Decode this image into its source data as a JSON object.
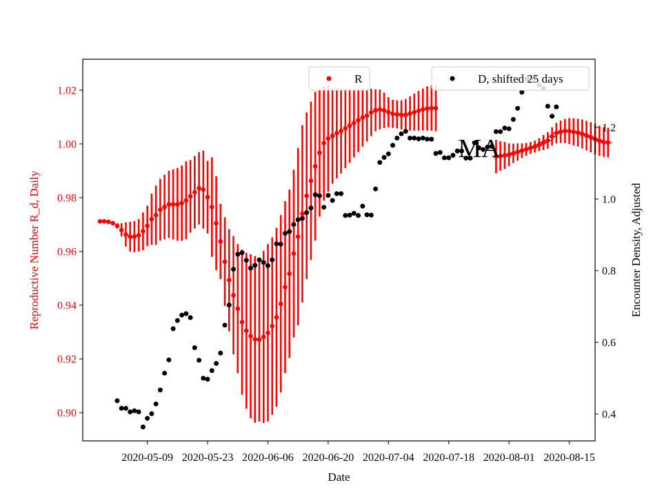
{
  "chart_data": {
    "type": "scatter",
    "annotation": "MA",
    "xlabel": "Date",
    "x_ticks": [
      "2020-05-09",
      "2020-05-23",
      "2020-06-06",
      "2020-06-20",
      "2020-07-04",
      "2020-07-18",
      "2020-08-01",
      "2020-08-15"
    ],
    "y_left": {
      "label": "Reproductive Number R_d, Daily",
      "color": "#ff0000",
      "ticks": [
        "0.90",
        "0.92",
        "0.94",
        "0.96",
        "0.98",
        "1.00",
        "1.02"
      ],
      "lim": [
        0.8895,
        1.0315
      ]
    },
    "y_right": {
      "label": "Encounter Density, Adjusted",
      "color": "#000000",
      "ticks": [
        "0.4",
        "0.6",
        "0.8",
        "1.0",
        "1.2"
      ],
      "lim": [
        0.325,
        1.39
      ]
    },
    "legend": {
      "left_label": "R",
      "right_label": "D, shifted 25 days"
    },
    "series": [
      {
        "name": "R",
        "axis": "left",
        "color": "#ff0000",
        "start_date": "2020-04-28",
        "values": [
          0.9712,
          0.9712,
          0.971,
          0.9705,
          0.9695,
          0.968,
          0.9663,
          0.9655,
          0.9655,
          0.966,
          0.9675,
          0.9695,
          0.972,
          0.9735,
          0.9755,
          0.9765,
          0.9775,
          0.9775,
          0.9775,
          0.978,
          0.979,
          0.9805,
          0.982,
          0.9835,
          0.983,
          0.9802,
          0.9765,
          0.9705,
          0.9637,
          0.9562,
          0.9493,
          0.9437,
          0.9387,
          0.9337,
          0.9305,
          0.9285,
          0.9273,
          0.9272,
          0.9282,
          0.9297,
          0.9322,
          0.9355,
          0.9405,
          0.9467,
          0.9517,
          0.9592,
          0.9655,
          0.974,
          0.9807,
          0.9863,
          0.9917,
          0.9967,
          1.0003,
          1.002,
          1.003,
          1.004,
          1.0048,
          1.0058,
          1.0068,
          1.0078,
          1.0088,
          1.0098,
          1.0105,
          1.0117,
          1.0125,
          1.0128,
          1.0125,
          1.0118,
          1.0112,
          1.011,
          1.0108,
          1.0108,
          1.0113,
          1.0118,
          1.0123,
          1.0128,
          1.0132,
          1.0133,
          1.0133
        ],
        "errors": [
          0,
          0,
          0,
          0,
          0.001,
          0.0025,
          0.0045,
          0.0055,
          0.0058,
          0.006,
          0.007,
          0.0075,
          0.0095,
          0.011,
          0.0115,
          0.012,
          0.0125,
          0.013,
          0.0135,
          0.014,
          0.0145,
          0.0135,
          0.0135,
          0.0135,
          0.0145,
          0.0135,
          0.0185,
          0.0175,
          0.014,
          0.0165,
          0.019,
          0.022,
          0.024,
          0.027,
          0.029,
          0.0305,
          0.031,
          0.0305,
          0.032,
          0.033,
          0.033,
          0.0333,
          0.033,
          0.032,
          0.0313,
          0.0312,
          0.033,
          0.033,
          0.031,
          0.0294,
          0.0277,
          0.0238,
          0.0213,
          0.0198,
          0.0178,
          0.0168,
          0.0158,
          0.0148,
          0.0138,
          0.0128,
          0.0118,
          0.0108,
          0.0096,
          0.0088,
          0.0078,
          0.0074,
          0.0066,
          0.0056,
          0.0052,
          0.0052,
          0.0054,
          0.0059,
          0.0064,
          0.0069,
          0.0074,
          0.0078,
          0.0082,
          0.0084,
          0.0086
        ]
      },
      {
        "name": "R (tail)",
        "axis": "left",
        "color": "#ff0000",
        "start_date": "2020-07-29",
        "values": [
          0.9953,
          0.9955,
          0.9957,
          0.996,
          0.9965,
          0.997,
          0.9975,
          0.998,
          0.9985,
          0.999,
          0.9997,
          1.0005,
          1.0013,
          1.0028,
          1.004,
          1.0045,
          1.0048,
          1.0048,
          1.0045,
          1.0042,
          1.0037,
          1.0031,
          1.0025,
          1.0018,
          1.0012,
          1.0007,
          1.0005
        ],
        "errors": [
          0.0062,
          0.0055,
          0.005,
          0.0042,
          0.0036,
          0.0032,
          0.0027,
          0.0024,
          0.0022,
          0.0022,
          0.0024,
          0.0028,
          0.0031,
          0.0034,
          0.0038,
          0.0042,
          0.0045,
          0.0048,
          0.005,
          0.0052,
          0.0054,
          0.0055,
          0.0056,
          0.0057,
          0.0056,
          0.0055,
          0.0055
        ]
      },
      {
        "name": "D, shifted 25 days",
        "axis": "right",
        "color": "#000000",
        "start_date": "2020-05-02",
        "points": [
          [
            "2020-05-02",
            0.437
          ],
          [
            "2020-05-03",
            0.416
          ],
          [
            "2020-05-04",
            0.416
          ],
          [
            "2020-05-05",
            0.406
          ],
          [
            "2020-05-06",
            0.409
          ],
          [
            "2020-05-07",
            0.406
          ],
          [
            "2020-05-08",
            0.364
          ],
          [
            "2020-05-09",
            0.388
          ],
          [
            "2020-05-10",
            0.401
          ],
          [
            "2020-05-11",
            0.428
          ],
          [
            "2020-05-12",
            0.467
          ],
          [
            "2020-05-13",
            0.514
          ],
          [
            "2020-05-14",
            0.551
          ],
          [
            "2020-05-15",
            0.638
          ],
          [
            "2020-05-16",
            0.661
          ],
          [
            "2020-05-17",
            0.676
          ],
          [
            "2020-05-18",
            0.68
          ],
          [
            "2020-05-19",
            0.669
          ],
          [
            "2020-05-20",
            0.585
          ],
          [
            "2020-05-21",
            0.55
          ],
          [
            "2020-05-22",
            0.5
          ],
          [
            "2020-05-23",
            0.497
          ],
          [
            "2020-05-24",
            0.521
          ],
          [
            "2020-05-25",
            0.541
          ],
          [
            "2020-05-26",
            0.57
          ],
          [
            "2020-05-27",
            0.648
          ],
          [
            "2020-05-28",
            0.704
          ],
          [
            "2020-05-29",
            0.804
          ],
          [
            "2020-05-30",
            0.846
          ],
          [
            "2020-05-31",
            0.85
          ],
          [
            "2020-06-01",
            0.829
          ],
          [
            "2020-06-02",
            0.807
          ],
          [
            "2020-06-03",
            0.815
          ],
          [
            "2020-06-04",
            0.83
          ],
          [
            "2020-06-05",
            0.823
          ],
          [
            "2020-06-06",
            0.814
          ],
          [
            "2020-06-07",
            0.83
          ],
          [
            "2020-06-08",
            0.875
          ],
          [
            "2020-06-09",
            0.874
          ],
          [
            "2020-06-10",
            0.904
          ],
          [
            "2020-06-11",
            0.909
          ],
          [
            "2020-06-12",
            0.929
          ],
          [
            "2020-06-13",
            0.942
          ],
          [
            "2020-06-14",
            0.946
          ],
          [
            "2020-06-15",
            0.962
          ],
          [
            "2020-06-16",
            0.975
          ],
          [
            "2020-06-17",
            1.012
          ],
          [
            "2020-06-18",
            1.009
          ],
          [
            "2020-06-19",
            0.977
          ],
          [
            "2020-06-20",
            1.01
          ],
          [
            "2020-06-21",
            0.996
          ],
          [
            "2020-06-22",
            1.015
          ],
          [
            "2020-06-23",
            1.015
          ],
          [
            "2020-06-24",
            0.954
          ],
          [
            "2020-06-25",
            0.955
          ],
          [
            "2020-06-26",
            0.96
          ],
          [
            "2020-06-27",
            0.954
          ],
          [
            "2020-06-28",
            0.98
          ],
          [
            "2020-06-29",
            0.956
          ],
          [
            "2020-06-30",
            0.955
          ],
          [
            "2020-07-01",
            1.028
          ],
          [
            "2020-07-02",
            1.102
          ],
          [
            "2020-07-03",
            1.116
          ],
          [
            "2020-07-04",
            1.126
          ],
          [
            "2020-07-05",
            1.15
          ],
          [
            "2020-07-06",
            1.17
          ],
          [
            "2020-07-07",
            1.182
          ],
          [
            "2020-07-08",
            1.189
          ],
          [
            "2020-07-09",
            1.17
          ],
          [
            "2020-07-10",
            1.17
          ],
          [
            "2020-07-11",
            1.168
          ],
          [
            "2020-07-12",
            1.17
          ],
          [
            "2020-07-13",
            1.167
          ],
          [
            "2020-07-14",
            1.167
          ],
          [
            "2020-07-15",
            1.127
          ],
          [
            "2020-07-16",
            1.13
          ],
          [
            "2020-07-17",
            1.115
          ],
          [
            "2020-07-18",
            1.115
          ],
          [
            "2020-07-19",
            1.122
          ],
          [
            "2020-07-20",
            1.134
          ],
          [
            "2020-07-21",
            1.134
          ],
          [
            "2020-07-22",
            1.114
          ],
          [
            "2020-07-23",
            1.114
          ],
          [
            "2020-07-24",
            1.157
          ],
          [
            "2020-07-25",
            1.143
          ],
          [
            "2020-07-26",
            1.138
          ],
          [
            "2020-07-27",
            1.145
          ],
          [
            "2020-07-28",
            1.147
          ],
          [
            "2020-07-29",
            1.188
          ],
          [
            "2020-07-30",
            1.188
          ],
          [
            "2020-07-31",
            1.198
          ],
          [
            "2020-08-01",
            1.196
          ],
          [
            "2020-08-02",
            1.222
          ],
          [
            "2020-08-03",
            1.253
          ],
          [
            "2020-08-04",
            1.298
          ],
          [
            "2020-08-05",
            1.335
          ],
          [
            "2020-08-06",
            1.338
          ],
          [
            "2020-08-07",
            1.338
          ],
          [
            "2020-08-08",
            1.318
          ],
          [
            "2020-08-09",
            1.309
          ],
          [
            "2020-08-10",
            1.259
          ],
          [
            "2020-08-11",
            1.231
          ],
          [
            "2020-08-12",
            1.257
          ]
        ]
      }
    ]
  }
}
